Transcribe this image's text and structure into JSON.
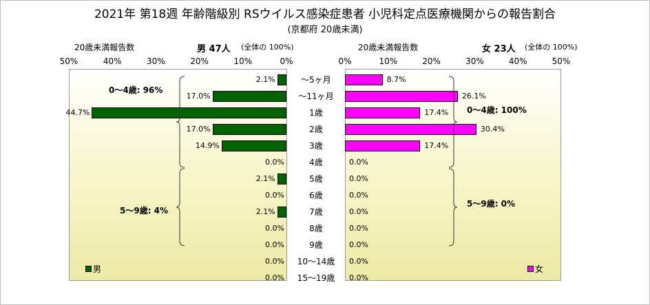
{
  "title": "2021年 第18週 年齢階級別 RSウイルス感染症患者 小児科定点医療機関からの報告割合",
  "subtitle": "(京都府 20歳未満)",
  "male_header": {
    "label": "20歳未満報告数",
    "total": "男 47人",
    "share": "(全体の 100%)"
  },
  "female_header": {
    "label": "20歳未満報告数",
    "total": "女 23人",
    "share": "(全体の 100%)"
  },
  "colors": {
    "male": "#006400",
    "female": "#ff00ff"
  },
  "chart_data": {
    "type": "bar",
    "orientation": "horizontal-population-pyramid",
    "categories": [
      "〜5ヶ月",
      "〜11ヶ月",
      "1歳",
      "2歳",
      "3歳",
      "4歳",
      "5歳",
      "6歳",
      "7歳",
      "8歳",
      "9歳",
      "10〜14歳",
      "15〜19歳"
    ],
    "xlim": [
      0,
      50
    ],
    "xticks": [
      "50%",
      "40%",
      "30%",
      "20%",
      "10%",
      "0%"
    ],
    "xticks_right": [
      "0%",
      "10%",
      "20%",
      "30%",
      "40%",
      "50%"
    ],
    "series": [
      {
        "name": "男",
        "values": [
          2.1,
          17.0,
          44.7,
          17.0,
          14.9,
          0.0,
          2.1,
          0.0,
          2.1,
          0.0,
          0.0,
          0.0,
          0.0
        ],
        "labels": [
          "2.1%",
          "17.0%",
          "44.7%",
          "17.0%",
          "14.9%",
          "0.0%",
          "2.1%",
          "0.0%",
          "2.1%",
          "0.0%",
          "0.0%",
          "0.0%",
          "0.0%"
        ]
      },
      {
        "name": "女",
        "values": [
          8.7,
          26.1,
          17.4,
          30.4,
          17.4,
          0.0,
          0.0,
          0.0,
          0.0,
          0.0,
          0.0,
          0.0,
          0.0
        ],
        "labels": [
          "8.7%",
          "26.1%",
          "17.4%",
          "30.4%",
          "17.4%",
          "0.0%",
          "0.0%",
          "0.0%",
          "0.0%",
          "0.0%",
          "0.0%",
          "0.0%",
          "0.0%"
        ]
      }
    ],
    "annotations": {
      "male_0_4": "0〜4歳: 96%",
      "male_5_9": "5〜9歳: 4%",
      "female_0_4": "0〜4歳: 100%",
      "female_5_9": "5〜9歳: 0%"
    },
    "grid": false
  }
}
